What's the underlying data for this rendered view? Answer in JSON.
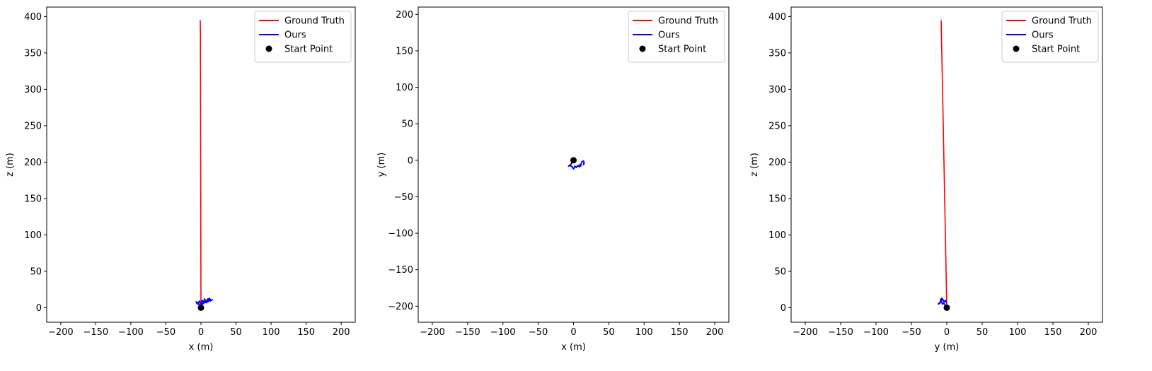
{
  "chart_data": [
    {
      "type": "line",
      "xlabel": "x (m)",
      "ylabel": "z (m)",
      "xlim": [
        -220,
        220
      ],
      "ylim": [
        -20,
        413
      ],
      "xticks": [
        -200,
        -150,
        -100,
        -50,
        0,
        50,
        100,
        150,
        200
      ],
      "yticks": [
        0,
        50,
        100,
        150,
        200,
        250,
        300,
        350,
        400
      ],
      "grid": false,
      "legend_position": "top-right",
      "series": [
        {
          "name": "Ground Truth",
          "color": "#ff0000",
          "x": [
            0,
            -0.1,
            -0.2,
            -0.4,
            -0.6,
            -0.8,
            -1.0
          ],
          "y": [
            0,
            50,
            100,
            200,
            300,
            380,
            395
          ]
        },
        {
          "name": "Ours",
          "color": "#0000ff",
          "x": [
            0,
            -2,
            -4,
            -7,
            -5,
            -2,
            0,
            2,
            4,
            5,
            7,
            9,
            10,
            12,
            14,
            16,
            13,
            10,
            8,
            6,
            4,
            2,
            0
          ],
          "y": [
            0,
            3,
            6,
            8,
            5,
            9,
            4,
            10,
            6,
            12,
            7,
            11,
            8,
            13,
            10,
            11,
            9,
            12,
            7,
            10,
            6,
            5,
            3
          ]
        }
      ],
      "start_point": {
        "name": "Start Point",
        "x": 0,
        "y": 0,
        "color": "#000000"
      }
    },
    {
      "type": "line",
      "xlabel": "x (m)",
      "ylabel": "y (m)",
      "xlim": [
        -220,
        220
      ],
      "ylim": [
        -222,
        210
      ],
      "xticks": [
        -200,
        -150,
        -100,
        -50,
        0,
        50,
        100,
        150,
        200
      ],
      "yticks": [
        -200,
        -150,
        -100,
        -50,
        0,
        50,
        100,
        150,
        200
      ],
      "grid": false,
      "legend_position": "top-right",
      "series": [
        {
          "name": "Ground Truth",
          "color": "#ff0000",
          "x": [
            0,
            -0.1,
            -0.2
          ],
          "y": [
            0,
            -0.3,
            -0.5
          ]
        },
        {
          "name": "Ours",
          "color": "#0000ff",
          "x": [
            0,
            -2,
            -4,
            -7,
            -5,
            -2,
            0,
            2,
            4,
            6,
            8,
            9,
            10,
            11,
            12,
            14,
            15,
            14
          ],
          "y": [
            0,
            -3,
            -6,
            -8,
            -7,
            -9,
            -12,
            -8,
            -10,
            -7,
            -9,
            -6,
            -8,
            -4,
            -2,
            -1,
            -3,
            -7
          ]
        }
      ],
      "start_point": {
        "name": "Start Point",
        "x": 0,
        "y": 0,
        "color": "#000000"
      }
    },
    {
      "type": "line",
      "xlabel": "y (m)",
      "ylabel": "z (m)",
      "xlim": [
        -220,
        220
      ],
      "ylim": [
        -20,
        413
      ],
      "xticks": [
        -200,
        -150,
        -100,
        -50,
        0,
        50,
        100,
        150,
        200
      ],
      "yticks": [
        0,
        50,
        100,
        150,
        200,
        250,
        300,
        350,
        400
      ],
      "grid": false,
      "legend_position": "top-right",
      "series": [
        {
          "name": "Ground Truth",
          "color": "#ff0000",
          "x": [
            0,
            -2,
            -4,
            -6,
            -8
          ],
          "y": [
            0,
            100,
            200,
            300,
            395
          ]
        },
        {
          "name": "Ours",
          "color": "#0000ff",
          "x": [
            0,
            -2,
            -4,
            -6,
            -8,
            -10,
            -12,
            -9,
            -7,
            -9,
            -8,
            -6,
            -4,
            -2,
            0
          ],
          "y": [
            0,
            3,
            6,
            5,
            9,
            6,
            5,
            8,
            13,
            11,
            9,
            12,
            8,
            10,
            6
          ]
        }
      ],
      "start_point": {
        "name": "Start Point",
        "x": 0,
        "y": 0,
        "color": "#000000"
      }
    }
  ]
}
